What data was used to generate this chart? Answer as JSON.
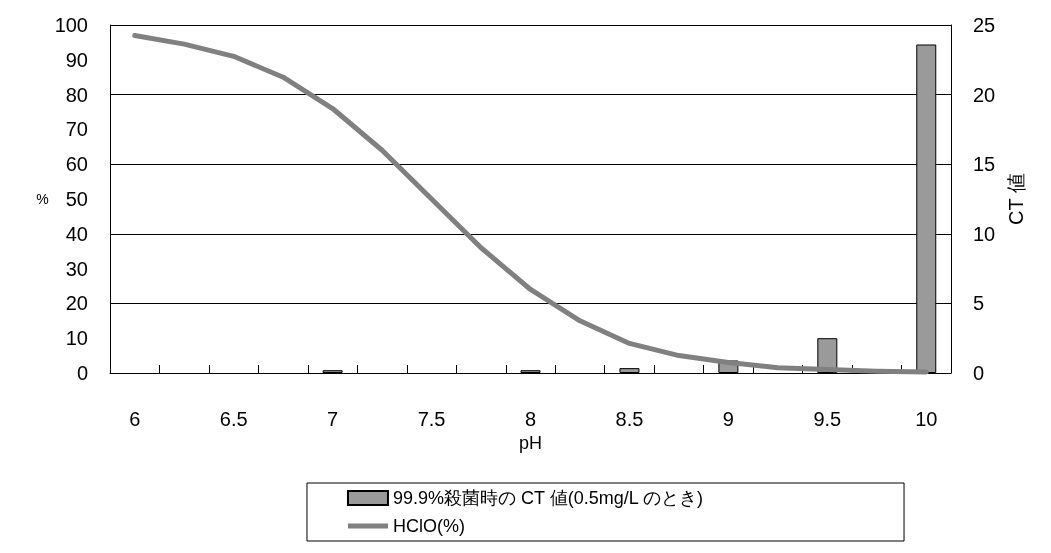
{
  "chart_data": {
    "type": "bar",
    "xlabel": "pH",
    "ylabel": "%",
    "y2label": "CT 値",
    "categories": [
      "6",
      null,
      "6.5",
      null,
      "7",
      null,
      "7.5",
      null,
      "8",
      null,
      "8.5",
      null,
      "9",
      null,
      "9.5",
      null,
      "10"
    ],
    "series": [
      {
        "name": "99.9%殺菌時の CT 値(0.5mg/L のとき)",
        "axis": "y2",
        "color": "#9a9a9a",
        "values": [
          null,
          null,
          null,
          null,
          0.2,
          null,
          null,
          null,
          0.2,
          null,
          0.35,
          null,
          0.9,
          null,
          2.5,
          null,
          23.6
        ]
      },
      {
        "name": "HClO(%)",
        "type": "line",
        "color": "#808080",
        "values": [
          97,
          94.5,
          91,
          85,
          76,
          64,
          50,
          36,
          24,
          15,
          8.5,
          5,
          3,
          1.5,
          1,
          0.5,
          0.3
        ]
      }
    ],
    "ylim": [
      0,
      100
    ],
    "yticks": [
      0,
      10,
      20,
      30,
      40,
      50,
      60,
      70,
      80,
      90,
      100
    ],
    "y2lim": [
      0,
      25
    ],
    "y2ticks": [
      0,
      5,
      10,
      15,
      20,
      25
    ],
    "grid": "y",
    "legend": "bottom",
    "marker": "none",
    "line_style": "solid"
  }
}
